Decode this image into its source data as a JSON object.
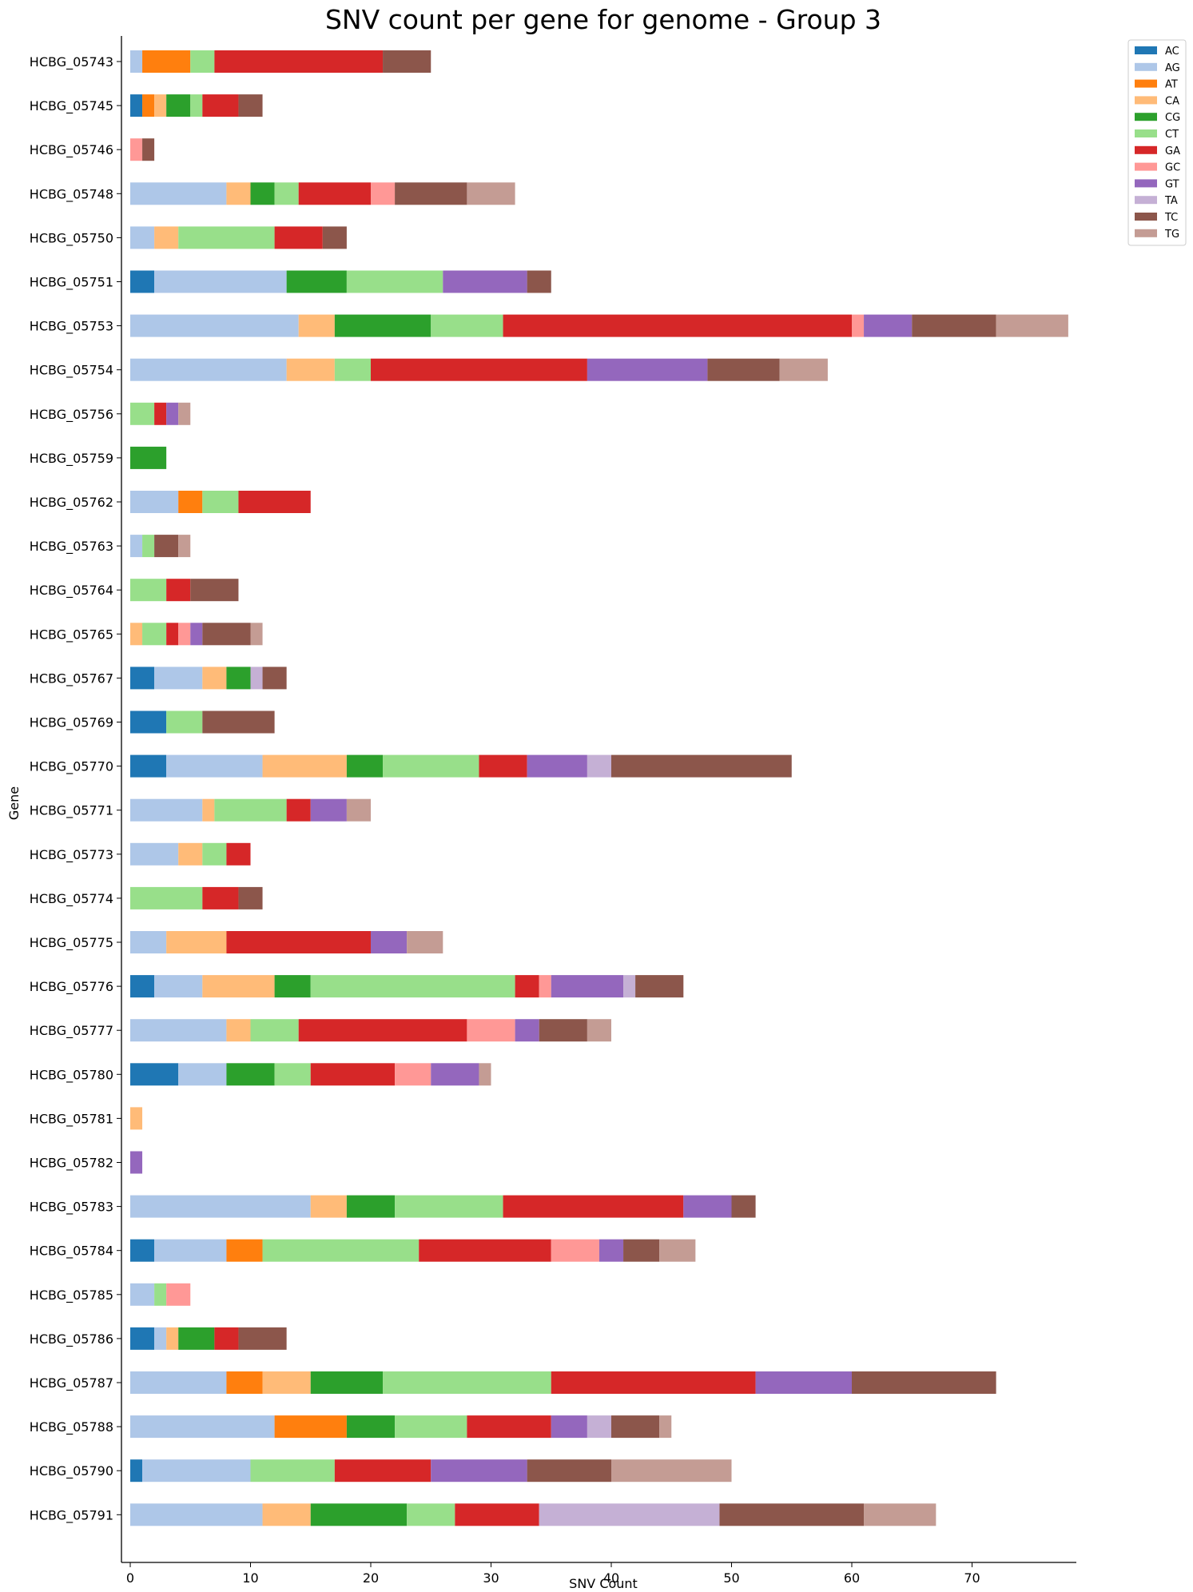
{
  "chart_data": {
    "type": "bar",
    "orientation": "horizontal",
    "stacked": true,
    "title": "SNV count per gene for genome - Group 3",
    "xlabel": "SNV Count",
    "ylabel": "Gene",
    "xlim": [
      0,
      79
    ],
    "xticks": [
      0,
      10,
      20,
      30,
      40,
      50,
      60,
      70
    ],
    "grid": false,
    "legend_position": "top-right outside",
    "categories": [
      "HCBG_05743",
      "HCBG_05745",
      "HCBG_05746",
      "HCBG_05748",
      "HCBG_05750",
      "HCBG_05751",
      "HCBG_05753",
      "HCBG_05754",
      "HCBG_05756",
      "HCBG_05759",
      "HCBG_05762",
      "HCBG_05763",
      "HCBG_05764",
      "HCBG_05765",
      "HCBG_05767",
      "HCBG_05769",
      "HCBG_05770",
      "HCBG_05771",
      "HCBG_05773",
      "HCBG_05774",
      "HCBG_05775",
      "HCBG_05776",
      "HCBG_05777",
      "HCBG_05780",
      "HCBG_05781",
      "HCBG_05782",
      "HCBG_05783",
      "HCBG_05784",
      "HCBG_05785",
      "HCBG_05786",
      "HCBG_05787",
      "HCBG_05788",
      "HCBG_05790",
      "HCBG_05791"
    ],
    "series": [
      {
        "name": "AC",
        "color": "#1f77b4",
        "values": [
          0,
          1,
          0,
          0,
          0,
          2,
          0,
          0,
          0,
          0,
          0,
          0,
          0,
          0,
          2,
          3,
          3,
          0,
          0,
          0,
          0,
          2,
          0,
          4,
          0,
          0,
          0,
          2,
          0,
          2,
          0,
          0,
          1,
          0
        ]
      },
      {
        "name": "AG",
        "color": "#aec7e8",
        "values": [
          1,
          0,
          0,
          8,
          2,
          11,
          14,
          13,
          0,
          0,
          4,
          1,
          0,
          0,
          4,
          0,
          8,
          6,
          4,
          0,
          3,
          4,
          8,
          4,
          0,
          0,
          15,
          6,
          2,
          1,
          8,
          12,
          9,
          11
        ]
      },
      {
        "name": "AT",
        "color": "#ff7f0e",
        "values": [
          4,
          1,
          0,
          0,
          0,
          0,
          0,
          0,
          0,
          0,
          2,
          0,
          0,
          0,
          0,
          0,
          0,
          0,
          0,
          0,
          0,
          0,
          0,
          0,
          0,
          0,
          0,
          3,
          0,
          0,
          3,
          6,
          0,
          0
        ]
      },
      {
        "name": "CA",
        "color": "#ffbb78",
        "values": [
          0,
          1,
          0,
          2,
          2,
          0,
          3,
          4,
          0,
          0,
          0,
          0,
          0,
          1,
          2,
          0,
          7,
          1,
          2,
          0,
          5,
          6,
          2,
          0,
          1,
          0,
          3,
          0,
          0,
          1,
          4,
          0,
          0,
          4
        ]
      },
      {
        "name": "CG",
        "color": "#2ca02c",
        "values": [
          0,
          2,
          0,
          2,
          0,
          5,
          8,
          0,
          0,
          3,
          0,
          0,
          0,
          0,
          2,
          0,
          3,
          0,
          0,
          0,
          0,
          3,
          0,
          4,
          0,
          0,
          4,
          0,
          0,
          3,
          6,
          4,
          0,
          8
        ]
      },
      {
        "name": "CT",
        "color": "#98df8a",
        "values": [
          2,
          1,
          0,
          2,
          8,
          8,
          6,
          3,
          2,
          0,
          3,
          1,
          3,
          2,
          0,
          3,
          8,
          6,
          2,
          6,
          0,
          17,
          4,
          3,
          0,
          0,
          9,
          13,
          1,
          0,
          14,
          6,
          7,
          4
        ]
      },
      {
        "name": "GA",
        "color": "#d62728",
        "values": [
          14,
          3,
          0,
          6,
          4,
          0,
          29,
          18,
          1,
          0,
          6,
          0,
          2,
          1,
          0,
          0,
          4,
          2,
          2,
          3,
          12,
          2,
          14,
          7,
          0,
          0,
          15,
          11,
          0,
          2,
          17,
          7,
          8,
          7
        ]
      },
      {
        "name": "GC",
        "color": "#ff9896",
        "values": [
          0,
          0,
          1,
          2,
          0,
          0,
          1,
          0,
          0,
          0,
          0,
          0,
          0,
          1,
          0,
          0,
          0,
          0,
          0,
          0,
          0,
          1,
          4,
          3,
          0,
          0,
          0,
          4,
          2,
          0,
          0,
          0,
          0,
          0
        ]
      },
      {
        "name": "GT",
        "color": "#9467bd",
        "values": [
          0,
          0,
          0,
          0,
          0,
          7,
          4,
          10,
          1,
          0,
          0,
          0,
          0,
          1,
          0,
          0,
          5,
          3,
          0,
          0,
          3,
          6,
          2,
          4,
          0,
          1,
          4,
          2,
          0,
          0,
          8,
          3,
          8,
          0
        ]
      },
      {
        "name": "TA",
        "color": "#c5b0d5",
        "values": [
          0,
          0,
          0,
          0,
          0,
          0,
          0,
          0,
          0,
          0,
          0,
          0,
          0,
          0,
          1,
          0,
          2,
          0,
          0,
          0,
          0,
          1,
          0,
          0,
          0,
          0,
          0,
          0,
          0,
          0,
          0,
          2,
          0,
          15
        ]
      },
      {
        "name": "TC",
        "color": "#8c564b",
        "values": [
          4,
          2,
          1,
          6,
          2,
          2,
          7,
          6,
          0,
          0,
          0,
          2,
          4,
          4,
          2,
          6,
          15,
          0,
          0,
          2,
          0,
          4,
          4,
          0,
          0,
          0,
          2,
          3,
          0,
          4,
          12,
          4,
          7,
          12
        ]
      },
      {
        "name": "TG",
        "color": "#c49c94",
        "values": [
          0,
          0,
          0,
          4,
          0,
          0,
          6,
          4,
          1,
          0,
          0,
          1,
          0,
          1,
          0,
          0,
          0,
          2,
          0,
          0,
          3,
          0,
          2,
          1,
          0,
          0,
          0,
          3,
          0,
          0,
          0,
          1,
          10,
          6
        ]
      }
    ]
  }
}
